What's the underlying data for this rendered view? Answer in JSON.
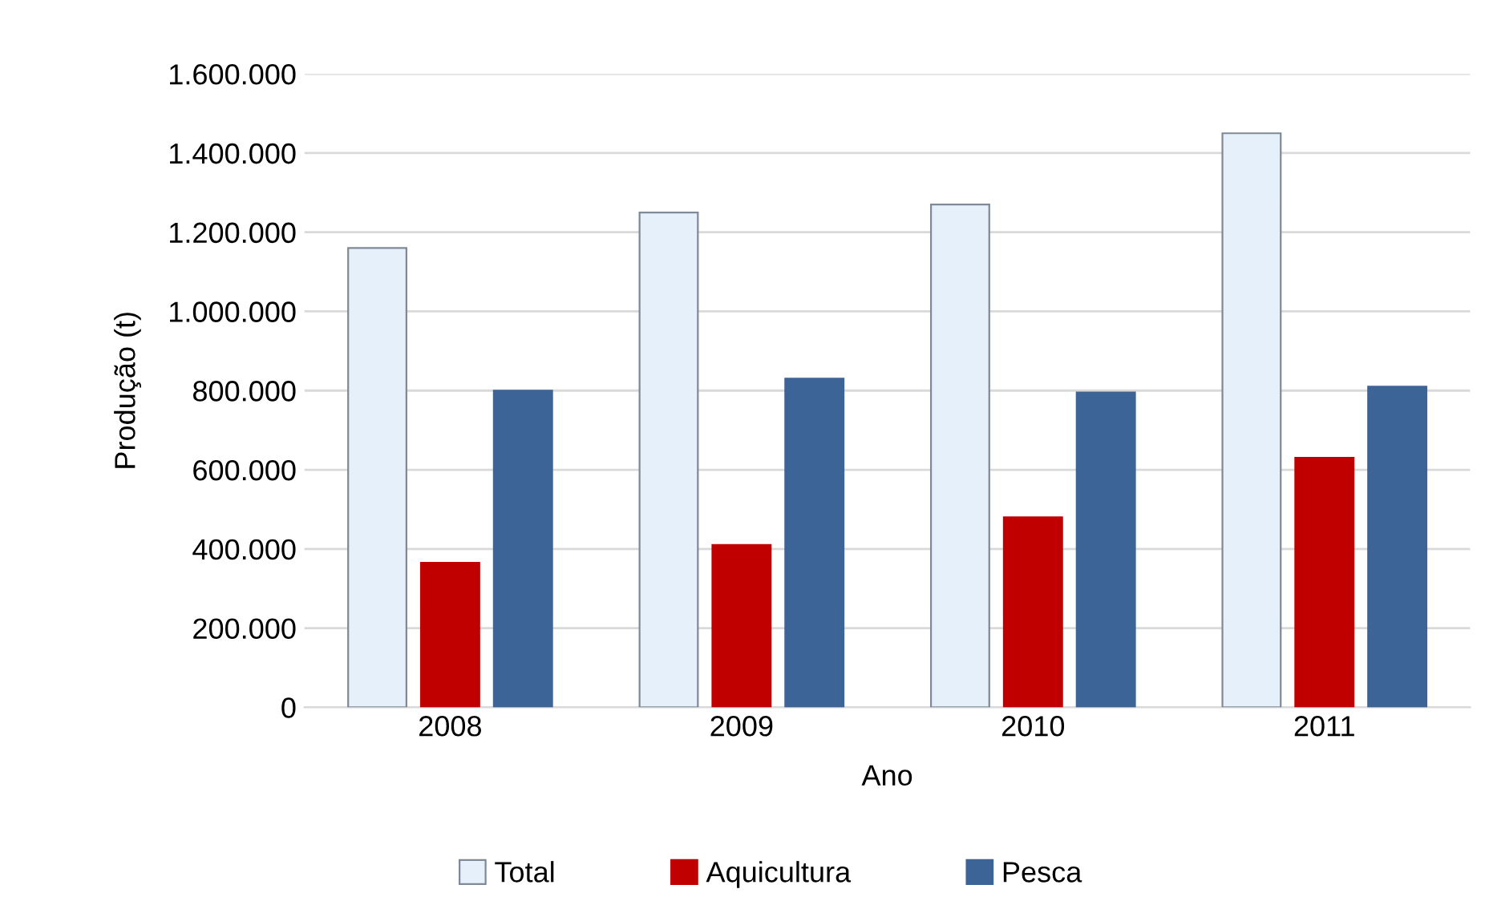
{
  "chart_data": {
    "type": "bar",
    "xlabel": "Ano",
    "ylabel": "Produção (t)",
    "categories": [
      "2008",
      "2009",
      "2010",
      "2011"
    ],
    "series": [
      {
        "name": "Total",
        "color": "#e6f0fa",
        "values": [
          1160000,
          1250000,
          1270000,
          1450000
        ]
      },
      {
        "name": "Aquicultura",
        "color": "#c00000",
        "values": [
          365000,
          410000,
          480000,
          630000
        ]
      },
      {
        "name": "Pesca",
        "color": "#3c6496",
        "values": [
          800000,
          830000,
          795000,
          810000
        ]
      }
    ],
    "ylim": [
      0,
      1600000
    ],
    "yticks": [
      {
        "value": 0,
        "label": "0"
      },
      {
        "value": 200000,
        "label": "200.000"
      },
      {
        "value": 400000,
        "label": "400.000"
      },
      {
        "value": 600000,
        "label": "600.000"
      },
      {
        "value": 800000,
        "label": "800.000"
      },
      {
        "value": 1000000,
        "label": "1.000.000"
      },
      {
        "value": 1200000,
        "label": "1.200.000"
      },
      {
        "value": 1400000,
        "label": "1.400.000"
      },
      {
        "value": 1600000,
        "label": "1.600.000"
      }
    ],
    "grid": "y",
    "legend": "bottom"
  }
}
